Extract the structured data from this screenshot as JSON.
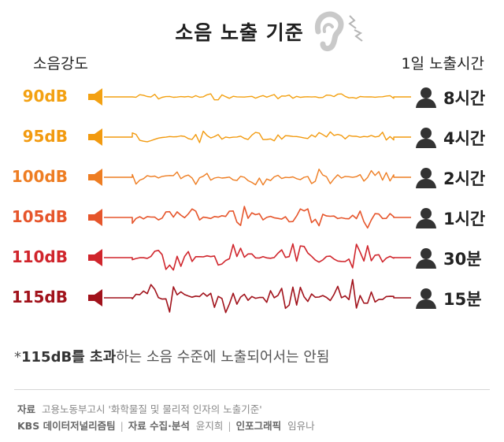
{
  "title": "소음 노출 기준",
  "header": {
    "left": "소음강도",
    "right": "1일 노출시간"
  },
  "rows": [
    {
      "level": "90dB",
      "duration": "8시간",
      "color": "#f3a112",
      "amplitude": 0.18
    },
    {
      "level": "95dB",
      "duration": "4시간",
      "color": "#f29a0f",
      "amplitude": 0.32
    },
    {
      "level": "100dB",
      "duration": "2시간",
      "color": "#ee7d22",
      "amplitude": 0.48
    },
    {
      "level": "105dB",
      "duration": "1시간",
      "color": "#e6552b",
      "amplitude": 0.62
    },
    {
      "level": "110dB",
      "duration": "30분",
      "color": "#d0252c",
      "amplitude": 0.78
    },
    {
      "level": "115dB",
      "duration": "15분",
      "color": "#a1121b",
      "amplitude": 1.0
    }
  ],
  "note": {
    "prefix": "*",
    "bold_part": "115dB를 초과",
    "rest": "하는 소음 수준에 노출되어서는 안됨"
  },
  "source": {
    "label": "자료",
    "text": "고용노동부고시 '화학물질 및 물리적 인자의 노출기준'"
  },
  "credits": {
    "org": "KBS 데이터저널리즘팀",
    "collect_label": "자료 수집·분석",
    "collect_name": "윤지희",
    "graphic_label": "인포그래픽",
    "graphic_name": "임유나"
  },
  "colors": {
    "title": "#1f1f1f",
    "person": "#333333"
  }
}
